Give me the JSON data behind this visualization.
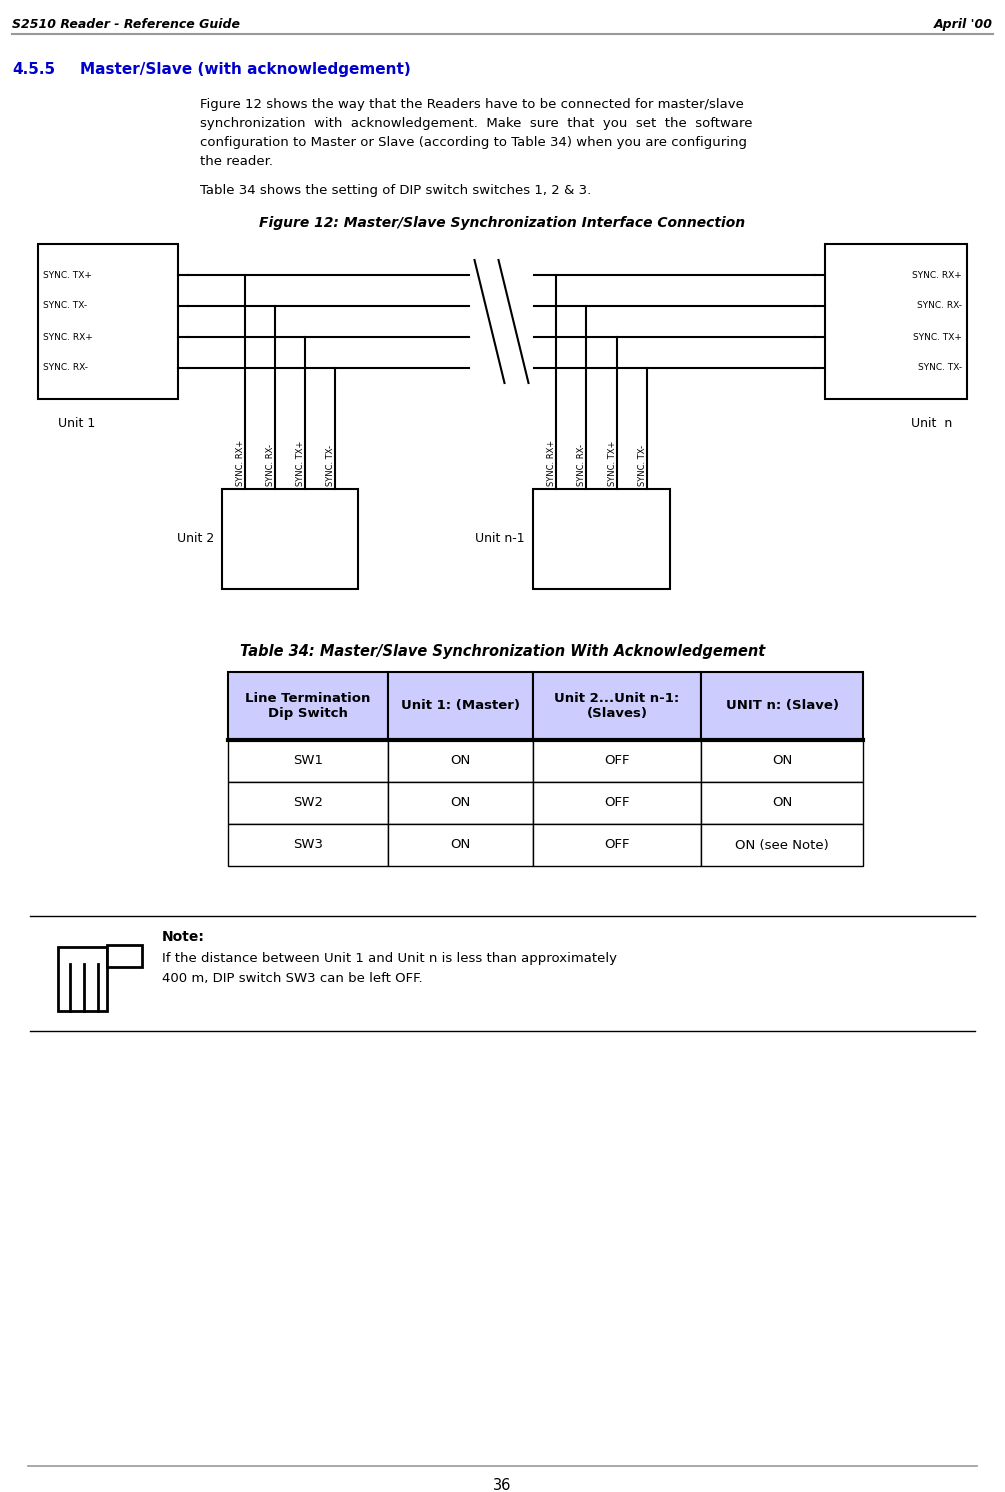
{
  "header_left": "S2510 Reader - Reference Guide",
  "header_right": "April '00",
  "section_number": "4.5.5",
  "section_title": "Master/Slave (with acknowledgement)",
  "body_lines": [
    "Figure 12 shows the way that the Readers have to be connected for master/slave",
    "synchronization  with  acknowledgement.  Make  sure  that  you  set  the  software",
    "configuration to Master or Slave (according to Table 34) when you are configuring",
    "the reader."
  ],
  "body_text_2": "Table 34 shows the setting of DIP switch switches 1, 2 & 3.",
  "figure_caption": "Figure 12: Master/Slave Synchronization Interface Connection",
  "table_caption": "Table 34: Master/Slave Synchronization With Acknowledgement",
  "table_headers": [
    "Line Termination\nDip Switch",
    "Unit 1: (Master)",
    "Unit 2...Unit n-1:\n(Slaves)",
    "UNIT n: (Slave)"
  ],
  "table_rows": [
    [
      "SW1",
      "ON",
      "OFF",
      "ON"
    ],
    [
      "SW2",
      "ON",
      "OFF",
      "ON"
    ],
    [
      "SW3",
      "ON",
      "OFF",
      "ON (see Note)"
    ]
  ],
  "note_title": "Note:",
  "note_text_1": "If the distance between Unit 1 and Unit n is less than approximately",
  "note_text_2": "400 m, DIP switch SW3 can be left OFF.",
  "footer_text": "36",
  "section_title_color": "#0000cc",
  "header_line_color": "#999999",
  "table_header_bg": "#ccccff",
  "bg_color": "#ffffff",
  "u1_pins": [
    "SYNC. TX+",
    "SYNC. TX-",
    "SYNC. RX+",
    "SYNC. RX-"
  ],
  "un_pins": [
    "SYNC. RX+",
    "SYNC. RX-",
    "SYNC. TX+",
    "SYNC. TX-"
  ],
  "u2_pins": [
    "SYNC. RX+",
    "SYNC. RX-",
    "SYNC. TX+",
    "SYNC. TX-"
  ],
  "unm1_pins": [
    "SYNC. RX+",
    "SYNC. RX-",
    "SYNC. TX+",
    "SYNC. TX-"
  ]
}
